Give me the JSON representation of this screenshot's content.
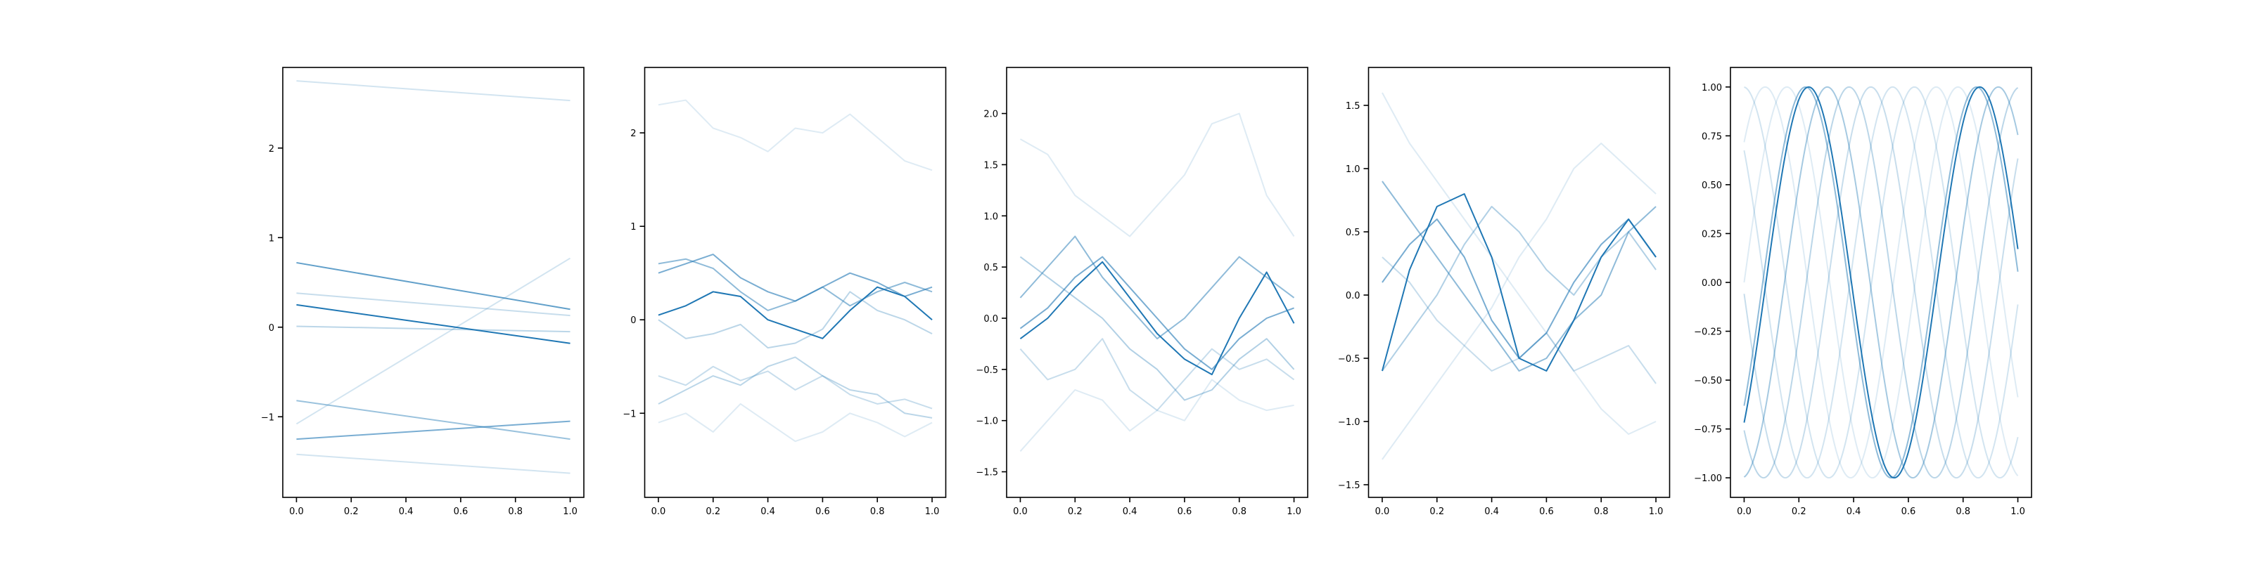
{
  "colors": {
    "line": "#1f77b4",
    "axes": "#000000",
    "background": "#ffffff"
  },
  "chart_data": [
    {
      "type": "line",
      "title": "",
      "xlabel": "",
      "ylabel": "",
      "xlim": [
        -0.05,
        1.05
      ],
      "ylim": [
        -1.9,
        2.9
      ],
      "xticks": [
        0.0,
        0.2,
        0.4,
        0.6,
        0.8,
        1.0
      ],
      "xtick_labels": [
        "0.0",
        "0.2",
        "0.4",
        "0.6",
        "0.8",
        "1.0"
      ],
      "yticks": [
        -1,
        0,
        1,
        2
      ],
      "ytick_labels": [
        "−1",
        "0",
        "1",
        "2"
      ],
      "series": [
        {
          "x": [
            0,
            1
          ],
          "y": [
            2.75,
            2.53
          ],
          "opacity": 0.2
        },
        {
          "x": [
            0,
            1
          ],
          "y": [
            -1.42,
            -1.63
          ],
          "opacity": 0.2
        },
        {
          "x": [
            0,
            1
          ],
          "y": [
            -1.08,
            0.77
          ],
          "opacity": 0.2
        },
        {
          "x": [
            0,
            1
          ],
          "y": [
            0.38,
            0.13
          ],
          "opacity": 0.25
        },
        {
          "x": [
            0,
            1
          ],
          "y": [
            0.01,
            -0.05
          ],
          "opacity": 0.3
        },
        {
          "x": [
            0,
            1
          ],
          "y": [
            -0.82,
            -1.25
          ],
          "opacity": 0.45
        },
        {
          "x": [
            0,
            1
          ],
          "y": [
            -1.25,
            -1.05
          ],
          "opacity": 0.6
        },
        {
          "x": [
            0,
            1
          ],
          "y": [
            0.72,
            0.2
          ],
          "opacity": 0.7
        },
        {
          "x": [
            0,
            1
          ],
          "y": [
            0.25,
            -0.18
          ],
          "opacity": 1.0
        }
      ]
    },
    {
      "type": "line",
      "title": "",
      "xlabel": "",
      "ylabel": "",
      "xlim": [
        -0.05,
        1.05
      ],
      "ylim": [
        -1.9,
        2.7
      ],
      "xticks": [
        0.0,
        0.2,
        0.4,
        0.6,
        0.8,
        1.0
      ],
      "xtick_labels": [
        "0.0",
        "0.2",
        "0.4",
        "0.6",
        "0.8",
        "1.0"
      ],
      "yticks": [
        -1,
        0,
        1,
        2
      ],
      "ytick_labels": [
        "−1",
        "0",
        "1",
        "2"
      ],
      "series": [
        {
          "x": [
            0.0,
            0.1,
            0.2,
            0.3,
            0.4,
            0.5,
            0.6,
            0.7,
            0.8,
            0.9,
            1.0
          ],
          "y": [
            2.3,
            2.35,
            2.05,
            1.95,
            1.8,
            2.05,
            2.0,
            2.2,
            1.95,
            1.7,
            1.6
          ],
          "opacity": 0.15
        },
        {
          "x": [
            0.0,
            0.1,
            0.2,
            0.3,
            0.4,
            0.5,
            0.6,
            0.7,
            0.8,
            0.9,
            1.0
          ],
          "y": [
            -1.1,
            -1.0,
            -1.2,
            -0.9,
            -1.1,
            -1.3,
            -1.2,
            -1.0,
            -1.1,
            -1.25,
            -1.1
          ],
          "opacity": 0.15
        },
        {
          "x": [
            0.0,
            0.1,
            0.2,
            0.3,
            0.4,
            0.5,
            0.6,
            0.7,
            0.8,
            0.9,
            1.0
          ],
          "y": [
            -0.6,
            -0.7,
            -0.5,
            -0.65,
            -0.55,
            -0.75,
            -0.6,
            -0.8,
            -0.9,
            -0.85,
            -0.95
          ],
          "opacity": 0.25
        },
        {
          "x": [
            0.0,
            0.1,
            0.2,
            0.3,
            0.4,
            0.5,
            0.6,
            0.7,
            0.8,
            0.9,
            1.0
          ],
          "y": [
            -0.9,
            -0.75,
            -0.6,
            -0.7,
            -0.5,
            -0.4,
            -0.6,
            -0.75,
            -0.8,
            -1.0,
            -1.05
          ],
          "opacity": 0.3
        },
        {
          "x": [
            0.0,
            0.1,
            0.2,
            0.3,
            0.4,
            0.5,
            0.6,
            0.7,
            0.8,
            0.9,
            1.0
          ],
          "y": [
            0.0,
            -0.2,
            -0.15,
            -0.05,
            -0.3,
            -0.25,
            -0.1,
            0.3,
            0.1,
            0.0,
            -0.15
          ],
          "opacity": 0.3
        },
        {
          "x": [
            0.0,
            0.1,
            0.2,
            0.3,
            0.4,
            0.5,
            0.6,
            0.7,
            0.8,
            0.9,
            1.0
          ],
          "y": [
            0.6,
            0.65,
            0.55,
            0.3,
            0.1,
            0.2,
            0.35,
            0.15,
            0.3,
            0.4,
            0.3
          ],
          "opacity": 0.5
        },
        {
          "x": [
            0.0,
            0.1,
            0.2,
            0.3,
            0.4,
            0.5,
            0.6,
            0.7,
            0.8,
            0.9,
            1.0
          ],
          "y": [
            0.5,
            0.6,
            0.7,
            0.45,
            0.3,
            0.2,
            0.35,
            0.5,
            0.4,
            0.25,
            0.35
          ],
          "opacity": 0.6
        },
        {
          "x": [
            0.0,
            0.1,
            0.2,
            0.3,
            0.4,
            0.5,
            0.6,
            0.7,
            0.8,
            0.9,
            1.0
          ],
          "y": [
            0.05,
            0.15,
            0.3,
            0.25,
            0.0,
            -0.1,
            -0.2,
            0.1,
            0.35,
            0.25,
            0.0
          ],
          "opacity": 1.0
        }
      ]
    },
    {
      "type": "line",
      "title": "",
      "xlabel": "",
      "ylabel": "",
      "xlim": [
        -0.05,
        1.05
      ],
      "ylim": [
        -1.75,
        2.45
      ],
      "xticks": [
        0.0,
        0.2,
        0.4,
        0.6,
        0.8,
        1.0
      ],
      "xtick_labels": [
        "0.0",
        "0.2",
        "0.4",
        "0.6",
        "0.8",
        "1.0"
      ],
      "yticks": [
        -1.5,
        -1.0,
        -0.5,
        0.0,
        0.5,
        1.0,
        1.5,
        2.0
      ],
      "ytick_labels": [
        "−1.5",
        "−1.0",
        "−0.5",
        "0.0",
        "0.5",
        "1.0",
        "1.5",
        "2.0"
      ],
      "series": [
        {
          "x": [
            0.0,
            0.1,
            0.2,
            0.3,
            0.4,
            0.5,
            0.6,
            0.7,
            0.8,
            0.9,
            1.0
          ],
          "y": [
            1.75,
            1.6,
            1.2,
            1.0,
            0.8,
            1.1,
            1.4,
            1.9,
            2.0,
            1.2,
            0.8
          ],
          "opacity": 0.15
        },
        {
          "x": [
            0.0,
            0.1,
            0.2,
            0.3,
            0.4,
            0.5,
            0.6,
            0.7,
            0.8,
            0.9,
            1.0
          ],
          "y": [
            -1.3,
            -1.0,
            -0.7,
            -0.8,
            -1.1,
            -0.9,
            -1.0,
            -0.6,
            -0.8,
            -0.9,
            -0.85
          ],
          "opacity": 0.15
        },
        {
          "x": [
            0.0,
            0.1,
            0.2,
            0.3,
            0.4,
            0.5,
            0.6,
            0.7,
            0.8,
            0.9,
            1.0
          ],
          "y": [
            -0.3,
            -0.6,
            -0.5,
            -0.2,
            -0.7,
            -0.9,
            -0.6,
            -0.3,
            -0.5,
            -0.4,
            -0.6
          ],
          "opacity": 0.25
        },
        {
          "x": [
            0.0,
            0.1,
            0.2,
            0.3,
            0.4,
            0.5,
            0.6,
            0.7,
            0.8,
            0.9,
            1.0
          ],
          "y": [
            0.6,
            0.4,
            0.2,
            0.0,
            -0.3,
            -0.5,
            -0.8,
            -0.7,
            -0.4,
            -0.2,
            -0.5
          ],
          "opacity": 0.35
        },
        {
          "x": [
            0.0,
            0.1,
            0.2,
            0.3,
            0.4,
            0.5,
            0.6,
            0.7,
            0.8,
            0.9,
            1.0
          ],
          "y": [
            0.2,
            0.5,
            0.8,
            0.4,
            0.1,
            -0.2,
            0.0,
            0.3,
            0.6,
            0.4,
            0.2
          ],
          "opacity": 0.5
        },
        {
          "x": [
            0.0,
            0.1,
            0.2,
            0.3,
            0.4,
            0.5,
            0.6,
            0.7,
            0.8,
            0.9,
            1.0
          ],
          "y": [
            -0.1,
            0.1,
            0.4,
            0.6,
            0.3,
            0.0,
            -0.3,
            -0.5,
            -0.2,
            0.0,
            0.1
          ],
          "opacity": 0.6
        },
        {
          "x": [
            0.0,
            0.1,
            0.2,
            0.3,
            0.4,
            0.5,
            0.6,
            0.7,
            0.8,
            0.9,
            1.0
          ],
          "y": [
            -0.2,
            0.0,
            0.3,
            0.55,
            0.2,
            -0.15,
            -0.4,
            -0.55,
            0.0,
            0.45,
            -0.05
          ],
          "opacity": 1.0
        }
      ]
    },
    {
      "type": "line",
      "title": "",
      "xlabel": "",
      "ylabel": "",
      "xlim": [
        -0.05,
        1.05
      ],
      "ylim": [
        -1.6,
        1.8
      ],
      "xticks": [
        0.0,
        0.2,
        0.4,
        0.6,
        0.8,
        1.0
      ],
      "xtick_labels": [
        "0.0",
        "0.2",
        "0.4",
        "0.6",
        "0.8",
        "1.0"
      ],
      "yticks": [
        -1.5,
        -1.0,
        -0.5,
        0.0,
        0.5,
        1.0,
        1.5
      ],
      "ytick_labels": [
        "−1.5",
        "−1.0",
        "−0.5",
        "0.0",
        "0.5",
        "1.0",
        "1.5"
      ],
      "series": [
        {
          "x": [
            0.0,
            0.1,
            0.2,
            0.3,
            0.4,
            0.5,
            0.6,
            0.7,
            0.8,
            0.9,
            1.0
          ],
          "y": [
            1.6,
            1.2,
            0.9,
            0.6,
            0.3,
            0.0,
            -0.3,
            -0.6,
            -0.9,
            -1.1,
            -1.0
          ],
          "opacity": 0.15
        },
        {
          "x": [
            0.0,
            0.1,
            0.2,
            0.3,
            0.4,
            0.5,
            0.6,
            0.7,
            0.8,
            0.9,
            1.0
          ],
          "y": [
            -1.3,
            -1.0,
            -0.7,
            -0.4,
            -0.1,
            0.3,
            0.6,
            1.0,
            1.2,
            1.0,
            0.8
          ],
          "opacity": 0.15
        },
        {
          "x": [
            0.0,
            0.1,
            0.2,
            0.3,
            0.4,
            0.5,
            0.6,
            0.7,
            0.8,
            0.9,
            1.0
          ],
          "y": [
            0.3,
            0.1,
            -0.2,
            -0.4,
            -0.6,
            -0.5,
            -0.3,
            -0.6,
            -0.5,
            -0.4,
            -0.7
          ],
          "opacity": 0.25
        },
        {
          "x": [
            0.0,
            0.1,
            0.2,
            0.3,
            0.4,
            0.5,
            0.6,
            0.7,
            0.8,
            0.9,
            1.0
          ],
          "y": [
            -0.6,
            -0.3,
            0.0,
            0.4,
            0.7,
            0.5,
            0.2,
            0.0,
            0.3,
            0.5,
            0.2
          ],
          "opacity": 0.35
        },
        {
          "x": [
            0.0,
            0.1,
            0.2,
            0.3,
            0.4,
            0.5,
            0.6,
            0.7,
            0.8,
            0.9,
            1.0
          ],
          "y": [
            0.9,
            0.6,
            0.3,
            0.0,
            -0.3,
            -0.6,
            -0.5,
            -0.2,
            0.0,
            0.5,
            0.7
          ],
          "opacity": 0.5
        },
        {
          "x": [
            0.0,
            0.1,
            0.2,
            0.3,
            0.4,
            0.5,
            0.6,
            0.7,
            0.8,
            0.9,
            1.0
          ],
          "y": [
            0.1,
            0.4,
            0.6,
            0.3,
            -0.2,
            -0.5,
            -0.3,
            0.1,
            0.4,
            0.6,
            0.3
          ],
          "opacity": 0.6
        },
        {
          "x": [
            0.0,
            0.1,
            0.2,
            0.3,
            0.4,
            0.5,
            0.6,
            0.7,
            0.8,
            0.9,
            1.0
          ],
          "y": [
            -0.6,
            0.2,
            0.7,
            0.8,
            0.3,
            -0.5,
            -0.6,
            -0.2,
            0.3,
            0.6,
            0.3
          ],
          "opacity": 1.0
        }
      ]
    },
    {
      "type": "line",
      "title": "",
      "xlabel": "",
      "ylabel": "",
      "xlim": [
        -0.05,
        1.05
      ],
      "ylim": [
        -1.1,
        1.1
      ],
      "xticks": [
        0.0,
        0.2,
        0.4,
        0.6,
        0.8,
        1.0
      ],
      "xtick_labels": [
        "0.0",
        "0.2",
        "0.4",
        "0.6",
        "0.8",
        "1.0"
      ],
      "yticks": [
        -1.0,
        -0.75,
        -0.5,
        -0.25,
        0.0,
        0.25,
        0.5,
        0.75,
        1.0
      ],
      "ytick_labels": [
        "−1.00",
        "−0.75",
        "−0.50",
        "−0.25",
        "0.00",
        "0.25",
        "0.50",
        "0.75",
        "1.00"
      ],
      "series_sine": [
        {
          "frequency": 1.6,
          "phase": 0.0,
          "opacity": 0.15
        },
        {
          "frequency": 1.6,
          "phase": 0.8,
          "opacity": 0.15
        },
        {
          "frequency": 1.6,
          "phase": 1.6,
          "opacity": 0.2
        },
        {
          "frequency": 1.6,
          "phase": 2.4,
          "opacity": 0.2
        },
        {
          "frequency": 1.6,
          "phase": 3.2,
          "opacity": 0.25
        },
        {
          "frequency": 1.6,
          "phase": 4.0,
          "opacity": 0.3
        },
        {
          "frequency": 1.6,
          "phase": 4.8,
          "opacity": 0.4
        },
        {
          "frequency": 1.6,
          "phase": 5.6,
          "opacity": 0.5
        },
        {
          "frequency": 1.6,
          "phase": -0.8,
          "opacity": 1.0
        }
      ]
    }
  ]
}
